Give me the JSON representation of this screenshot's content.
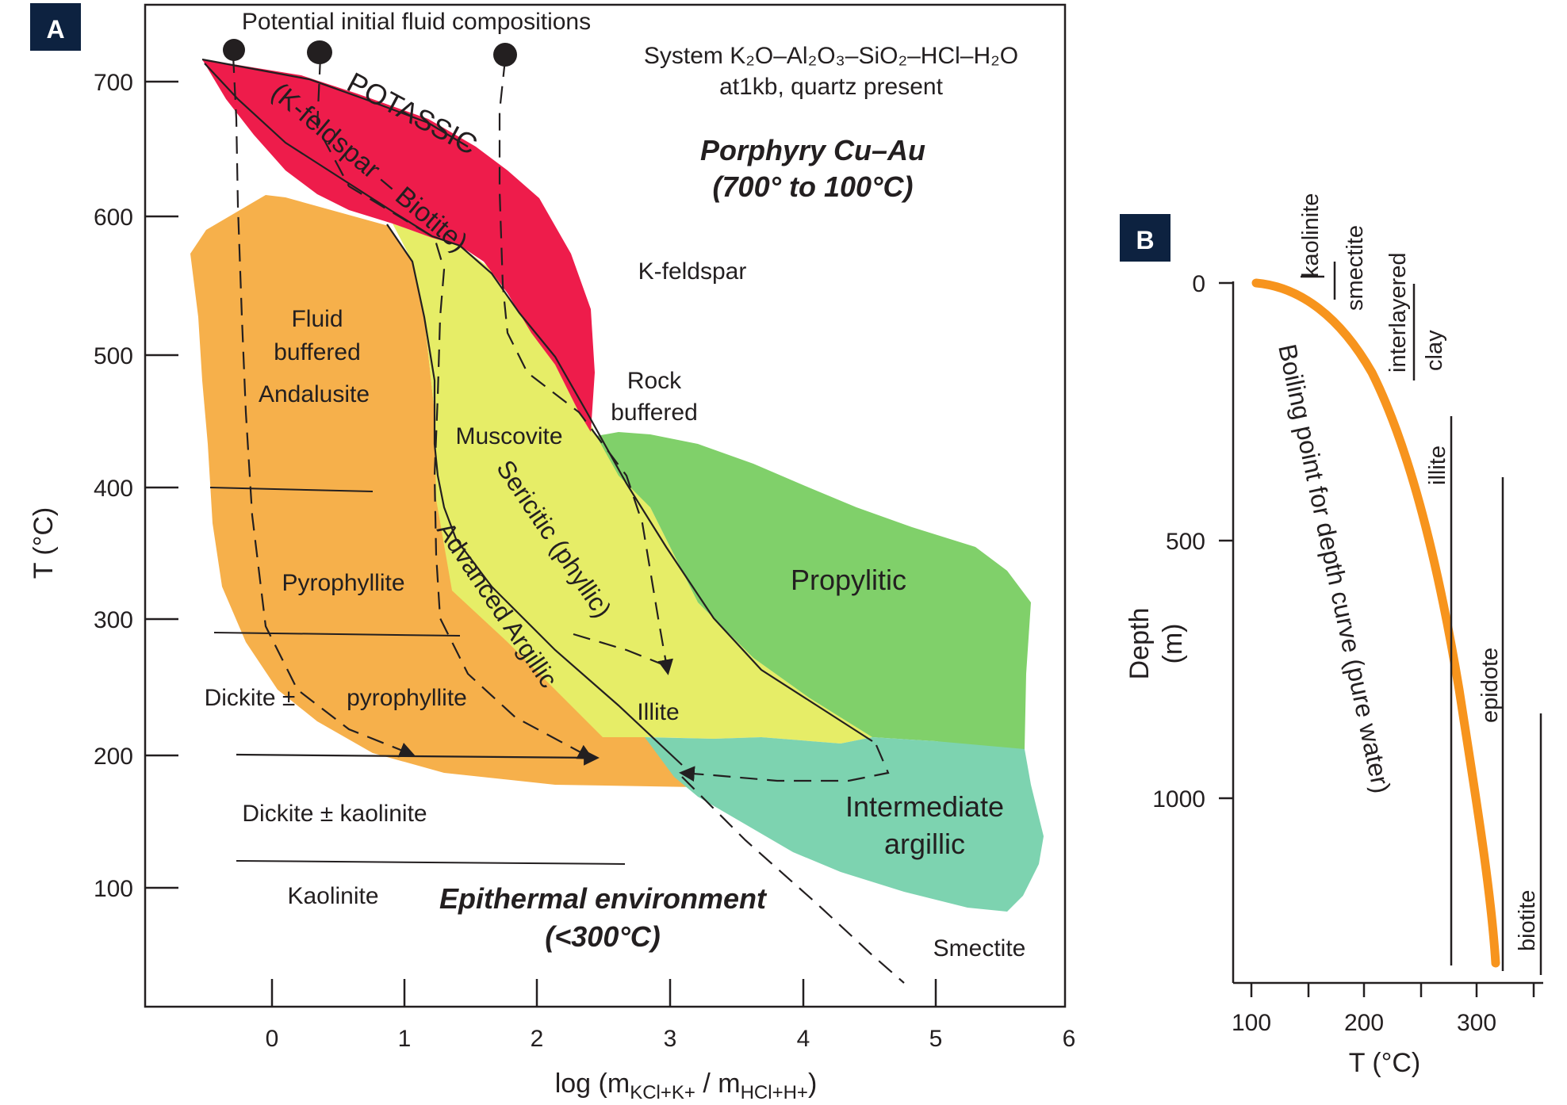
{
  "panel_a": {
    "badge": "A",
    "header": "Potential initial fluid compositions",
    "system_line1": "System K₂O–Al₂O₃–SiO₂–HCl–H₂O",
    "system_line2": "at1kb, quartz present",
    "porphyry_line1": "Porphyry Cu–Au",
    "porphyry_line2": "(700° to 100°C)",
    "epithermal_line1": "Epithermal environment",
    "epithermal_line2": "(<300°C)",
    "ylabel": "T (°C)",
    "xlabel": "log (mKCl+K+ / mHCl+H+)",
    "xlabel_parts": {
      "pre": "log (m",
      "sub1": "KCl+K+",
      "mid": " / m",
      "sub2": "HCl+H+",
      "post": ")"
    },
    "x_ticks": [
      "0",
      "1",
      "2",
      "3",
      "4",
      "5",
      "6"
    ],
    "y_ticks": [
      "100",
      "200",
      "300",
      "400",
      "500",
      "600",
      "700"
    ],
    "zones": {
      "potassic": "POTASSIC",
      "potassic_sub": "(K-feldspar – Biotite)",
      "sericitic": "Sericitic (phyllic)",
      "advanced_argillic": "Advanced Argillic",
      "propylitic": "Propylitic",
      "intermediate_argillic_1": "Intermediate",
      "intermediate_argillic_2": "argillic"
    },
    "minerals": {
      "fluid_buffered_1": "Fluid",
      "fluid_buffered_2": "buffered",
      "andalusite": "Andalusite",
      "muscovite": "Muscovite",
      "k_feldspar": "K-feldspar",
      "rock_buffered_1": "Rock",
      "rock_buffered_2": "buffered",
      "pyrophyllite": "Pyrophyllite",
      "dickite_pm": "Dickite ±",
      "pyrophyllite_lc": "pyrophyllite",
      "illite": "Illite",
      "dickite_kaolinite": "Dickite ± kaolinite",
      "kaolinite": "Kaolinite",
      "smectite": "Smectite"
    },
    "colors": {
      "potassic": "#ee1c4b",
      "advanced_argillic": "#f6b04b",
      "sericitic": "#e6ed67",
      "propylitic": "#80d06a",
      "intermediate_argillic": "#7dd3b0"
    }
  },
  "panel_b": {
    "badge": "B",
    "ylabel_1": "Depth",
    "ylabel_2": "(m)",
    "xlabel": "T (°C)",
    "x_ticks": [
      "100",
      "200",
      "300"
    ],
    "y_ticks": [
      "0",
      "500",
      "1000"
    ],
    "curve_label": "Boiling point for depth curve (pure water)",
    "minerals": {
      "kaolinite": "kaolinite",
      "smectite": "smectite",
      "interlayered": "interlayered",
      "clay": "clay",
      "illite": "illite",
      "epidote": "epidote",
      "biotite": "biotite"
    },
    "colors": {
      "curve": "#f7941d"
    }
  }
}
